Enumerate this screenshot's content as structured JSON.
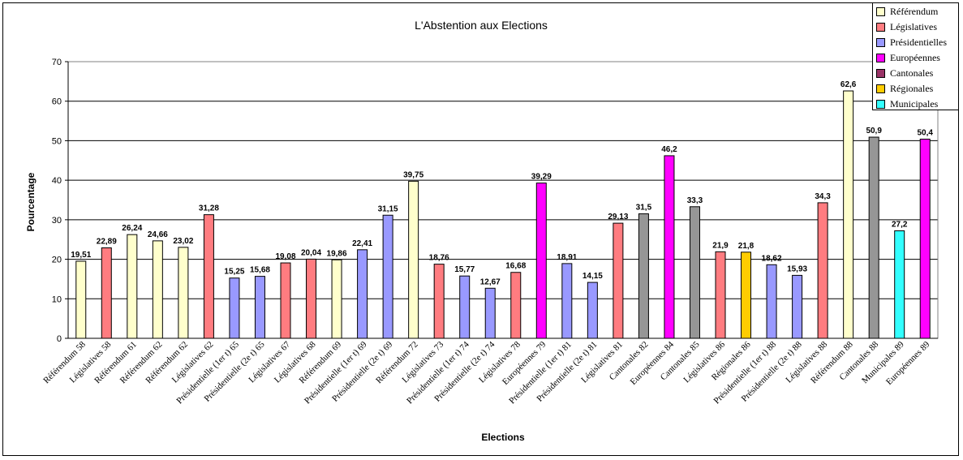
{
  "chart_data": {
    "type": "bar",
    "title": "L'Abstention aux Elections",
    "xlabel": "Elections",
    "ylabel": "Pourcentage",
    "ylim": [
      0,
      70
    ],
    "yticks": [
      0,
      10,
      20,
      30,
      40,
      50,
      60,
      70
    ],
    "grid": true,
    "legend_position": "top-right",
    "legend": [
      {
        "name": "Référendum",
        "color": "#ffffcc"
      },
      {
        "name": "Législatives",
        "color": "#ff7c80"
      },
      {
        "name": "Présidentielles",
        "color": "#9999ff"
      },
      {
        "name": "Européennes",
        "color": "#ff00ff"
      },
      {
        "name": "Cantonales",
        "color": "#993366"
      },
      {
        "name": "Régionales",
        "color": "#ffcc00"
      },
      {
        "name": "Municipales",
        "color": "#33ffff"
      }
    ],
    "categories": [
      "Référendum 58",
      "Législatives 58",
      "Référendum 61",
      "Référendum 62",
      "Référendum 62",
      "Législatives 62",
      "Présidentielle (1er t) 65",
      "Présidentielle (2e t) 65",
      "Législatives 67",
      "Législatives 68",
      "Référendum 69",
      "Présidentielle (1er t) 69",
      "Présidentielle (2e t) 69",
      "Référendum 72",
      "Législatives 73",
      "Présidentielle (1er t) 74",
      "Présidentielle (2e t) 74",
      "Législatives 78",
      "Européennes 79",
      "Présidentielle (1er t) 81",
      "Présidentielle (2e t) 81",
      "Législatives 81",
      "Cantonales 82",
      "Européennes 84",
      "Cantonales 85",
      "Législatives 86",
      "Régionales 86",
      "Présidentielle (1er t) 88",
      "Présidentielle (2e t) 88",
      "Législatives 88",
      "Référendum 88",
      "Cantonales 88",
      "Municipales 89",
      "Européennes 89"
    ],
    "values": [
      19.51,
      22.89,
      26.24,
      24.66,
      23.02,
      31.28,
      15.25,
      15.68,
      19.08,
      20.04,
      19.86,
      22.41,
      31.15,
      39.75,
      18.76,
      15.77,
      12.67,
      16.68,
      39.29,
      18.91,
      14.15,
      29.13,
      31.5,
      46.2,
      33.3,
      21.9,
      21.8,
      18.62,
      15.93,
      34.3,
      62.6,
      50.9,
      27.2,
      50.4
    ],
    "value_labels": [
      "19,51",
      "22,89",
      "26,24",
      "24,66",
      "23,02",
      "31,28",
      "15,25",
      "15,68",
      "19,08",
      "20,04",
      "19,86",
      "22,41",
      "31,15",
      "39,75",
      "18,76",
      "15,77",
      "12,67",
      "16,68",
      "39,29",
      "18,91",
      "14,15",
      "29,13",
      "31,5",
      "46,2",
      "33,3",
      "21,9",
      "21,8",
      "18,62",
      "15,93",
      "34,3",
      "62,6",
      "50,9",
      "27,2",
      "50,4"
    ],
    "bar_colors": [
      "#ffffcc",
      "#ff7c80",
      "#ffffcc",
      "#ffffcc",
      "#ffffcc",
      "#ff7c80",
      "#9999ff",
      "#9999ff",
      "#ff7c80",
      "#ff7c80",
      "#ffffcc",
      "#9999ff",
      "#9999ff",
      "#ffffcc",
      "#ff7c80",
      "#9999ff",
      "#9999ff",
      "#ff7c80",
      "#ff00ff",
      "#9999ff",
      "#9999ff",
      "#ff7c80",
      "#969696",
      "#ff00ff",
      "#969696",
      "#ff7c80",
      "#ffcc00",
      "#9999ff",
      "#9999ff",
      "#ff7c80",
      "#ffffcc",
      "#969696",
      "#33ffff",
      "#ff00ff"
    ]
  }
}
